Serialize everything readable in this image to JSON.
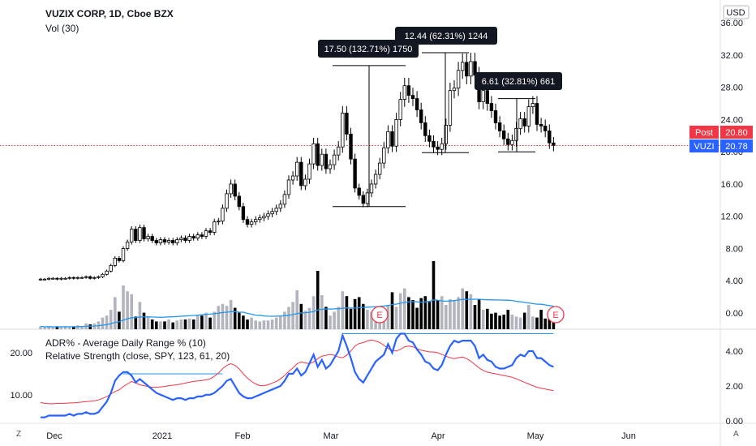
{
  "header": {
    "title": "VUZIX CORP, 1D, Cboe BZX",
    "volume": "Vol (30)",
    "indicator_1": "ADR% - Average Daily Range % (10)",
    "indicator_2": "Relative Strength (close, SPY, 123, 61, 20)"
  },
  "corner": {
    "left": "Z",
    "right": "A"
  },
  "chart_data": [
    {
      "type": "candlestick",
      "symbol": "VUZI",
      "interval": "1D",
      "exchange": "Cboe BZX",
      "currency": "USD",
      "ylim": [
        0,
        36
      ],
      "yticks": [
        "36.00",
        "32.00",
        "28.00",
        "24.00",
        "20.00",
        "16.00",
        "12.00",
        "8.00",
        "4.00",
        "0.00"
      ],
      "xticks": [
        "Dec",
        "2021",
        "Feb",
        "Mar",
        "Apr",
        "May",
        "Jun"
      ],
      "price_labels": [
        {
          "label": "Post",
          "value": "20.80",
          "color": "#f23645"
        },
        {
          "label": "VUZI",
          "value": "20.78",
          "color": "#2962ff"
        }
      ],
      "last_price_line": 20.78,
      "measure_annotations": [
        {
          "text": "17.50 (132.71%) 1750",
          "from": 13.2,
          "to": 30.7
        },
        {
          "text": "12.44 (62.31%) 1244",
          "from": 19.9,
          "to": 32.3
        },
        {
          "text": "6.61 (32.81%) 661",
          "from": 20.0,
          "to": 26.6
        }
      ],
      "closes": [
        4.2,
        4.2,
        4.3,
        4.3,
        4.2,
        4.3,
        4.3,
        4.4,
        4.3,
        4.4,
        4.4,
        4.5,
        4.3,
        4.4,
        4.5,
        4.8,
        5.2,
        5.9,
        6.8,
        6.5,
        8.0,
        8.8,
        10.4,
        9.0,
        10.6,
        9.2,
        9.5,
        9.0,
        8.7,
        9.1,
        8.8,
        9.0,
        8.7,
        9.1,
        9.3,
        9.0,
        9.5,
        9.3,
        9.7,
        9.5,
        10.2,
        10.0,
        11.3,
        11.4,
        13.0,
        14.8,
        16.0,
        14.5,
        13.2,
        11.6,
        11.0,
        11.3,
        11.6,
        11.8,
        12.0,
        12.3,
        12.6,
        13.0,
        13.5,
        14.7,
        16.5,
        17.0,
        18.7,
        15.8,
        16.6,
        18.5,
        21.0,
        18.3,
        19.7,
        17.9,
        18.4,
        19.6,
        20.6,
        24.8,
        22.2,
        19.1,
        15.5,
        14.6,
        13.6,
        14.9,
        16.0,
        17.2,
        18.6,
        20.5,
        22.5,
        20.7,
        24.0,
        26.5,
        28.2,
        27.0,
        26.6,
        25.2,
        23.6,
        22.0,
        21.3,
        20.6,
        20.3,
        21.0,
        23.3,
        27.6,
        27.9,
        30.1,
        31.1,
        29.4,
        31.2,
        29.5,
        26.2,
        27.6,
        26.0,
        25.1,
        23.6,
        22.6,
        21.6,
        20.9,
        21.4,
        22.9,
        24.1,
        23.2,
        25.6,
        26.0,
        23.4,
        23.2,
        22.6,
        21.1,
        20.8
      ],
      "volumes": [
        0.3,
        0.2,
        0.3,
        0.2,
        0.3,
        0.2,
        0.3,
        0.2,
        0.3,
        0.4,
        0.3,
        0.6,
        0.5,
        0.6,
        0.8,
        1.2,
        1.4,
        2.0,
        3.3,
        1.8,
        4.5,
        3.9,
        3.6,
        1.3,
        2.8,
        1.7,
        1.2,
        1.0,
        0.8,
        0.8,
        0.8,
        1.0,
        0.7,
        0.9,
        1.0,
        1.0,
        1.1,
        1.0,
        1.5,
        1.4,
        1.7,
        1.2,
        1.8,
        2.4,
        2.6,
        2.4,
        3.0,
        2.2,
        1.7,
        1.4,
        1.0,
        1.2,
        0.9,
        0.8,
        0.9,
        0.9,
        1.0,
        1.2,
        1.3,
        1.8,
        2.3,
        2.8,
        4.0,
        2.6,
        1.9,
        2.2,
        3.4,
        6.0,
        3.5,
        2.3,
        1.4,
        1.8,
        2.3,
        3.9,
        3.4,
        2.1,
        3.1,
        3.3,
        2.6,
        2.0,
        1.8,
        1.7,
        2.1,
        2.0,
        2.5,
        3.8,
        2.3,
        3.7,
        4.2,
        3.3,
        3.0,
        2.2,
        3.2,
        3.4,
        2.9,
        7.0,
        3.0,
        3.4,
        2.5,
        3.1,
        3.0,
        3.3,
        4.2,
        3.9,
        3.6,
        2.5,
        3.1,
        2.0,
        2.1,
        1.6,
        1.7,
        1.4,
        1.5,
        2.0,
        1.5,
        1.3,
        1.2,
        1.7,
        2.5,
        1.3,
        1.2,
        2.0,
        1.1,
        1.5,
        1.0
      ]
    },
    {
      "type": "line",
      "title": "ADR% - Average Daily Range % (10) / Relative Strength (close, SPY, 123, 61, 20)",
      "yticks_left": [
        "20.00",
        "10.00"
      ],
      "yticks_right": [
        "4.00",
        "2.00",
        "0.00"
      ],
      "series": [
        {
          "name": "ADR% - Average Daily Range % (10)",
          "color": "#f23645",
          "values": [
            8.2,
            8.0,
            7.9,
            7.9,
            8.0,
            8.0,
            8.0,
            8.1,
            8.1,
            8.2,
            8.3,
            8.4,
            8.5,
            8.6,
            8.8,
            9.2,
            9.6,
            10.2,
            10.8,
            11.2,
            12.0,
            12.6,
            13.2,
            12.8,
            12.4,
            12.2,
            12.0,
            11.8,
            11.8,
            11.9,
            12.0,
            12.2,
            12.3,
            12.4,
            12.6,
            12.8,
            13.0,
            13.2,
            13.3,
            13.4,
            13.6,
            13.8,
            14.4,
            15.2,
            16.2,
            17.0,
            17.4,
            17.0,
            16.2,
            15.0,
            14.0,
            13.2,
            12.6,
            12.2,
            12.2,
            12.4,
            12.8,
            13.2,
            13.8,
            14.6,
            15.6,
            16.4,
            17.4,
            17.8,
            17.6,
            17.4,
            17.8,
            18.6,
            19.2,
            19.4,
            19.6,
            19.4,
            19.0,
            18.8,
            19.4,
            20.4,
            21.6,
            22.2,
            22.4,
            22.8,
            23.0,
            22.8,
            22.4,
            21.8,
            21.0,
            20.6,
            20.4,
            20.8,
            21.4,
            21.6,
            21.4,
            21.0,
            20.6,
            20.4,
            20.2,
            20.2,
            20.0,
            19.6,
            19.2,
            18.8,
            18.6,
            18.8,
            19.0,
            18.6,
            18.0,
            17.2,
            16.4,
            15.8,
            15.4,
            15.2,
            15.0,
            14.8,
            14.6,
            14.4,
            14.2,
            13.8,
            13.4,
            13.0,
            12.6,
            12.2,
            11.8,
            11.6,
            11.4,
            11.2,
            11.0
          ]
        },
        {
          "name": "Relative Strength (close, SPY, 123, 61, 20)",
          "color": "#2962ff",
          "values": [
            0.2,
            0.2,
            0.3,
            0.3,
            0.3,
            0.3,
            0.3,
            0.4,
            0.3,
            0.4,
            0.4,
            0.5,
            0.4,
            0.4,
            0.5,
            0.8,
            1.1,
            1.6,
            2.3,
            2.6,
            2.8,
            2.8,
            2.6,
            2.2,
            2.4,
            2.2,
            2.0,
            1.8,
            1.6,
            1.5,
            1.4,
            1.3,
            1.2,
            1.3,
            1.3,
            1.2,
            1.3,
            1.3,
            1.4,
            1.4,
            1.5,
            1.5,
            1.6,
            1.8,
            2.0,
            2.3,
            2.4,
            2.0,
            1.6,
            1.4,
            1.3,
            1.3,
            1.4,
            1.5,
            1.6,
            1.7,
            1.8,
            1.9,
            2.0,
            2.3,
            2.7,
            2.7,
            3.0,
            2.6,
            2.8,
            3.3,
            3.8,
            3.1,
            3.5,
            3.0,
            3.2,
            3.6,
            4.0,
            4.9,
            4.3,
            3.6,
            2.8,
            2.4,
            2.2,
            2.6,
            3.0,
            3.4,
            3.6,
            3.8,
            4.4,
            3.9,
            4.7,
            5.0,
            5.0,
            4.6,
            4.5,
            4.1,
            3.8,
            3.4,
            3.3,
            3.0,
            2.9,
            3.2,
            3.8,
            4.3,
            4.6,
            4.5,
            4.6,
            4.6,
            4.6,
            4.3,
            3.6,
            3.8,
            3.5,
            3.4,
            3.1,
            3.0,
            3.0,
            3.1,
            3.2,
            3.6,
            3.8,
            3.7,
            4.0,
            4.0,
            3.6,
            3.6,
            3.4,
            3.2,
            3.1
          ]
        }
      ],
      "reference_lines": [
        {
          "value": 2.7,
          "from_index": 20,
          "to_index": 44,
          "color": "#2196f3"
        },
        {
          "value": 5.0,
          "from_index": 73,
          "to_index": 124,
          "color": "#2196f3"
        }
      ],
      "events": [
        "E",
        "E"
      ]
    }
  ]
}
